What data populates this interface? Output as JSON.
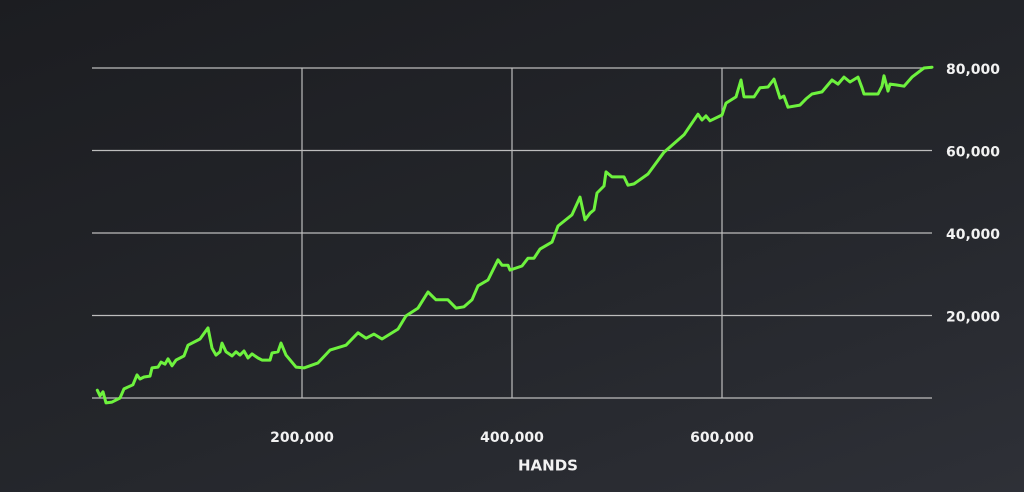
{
  "chart_data": {
    "type": "line",
    "xlabel": "HANDS",
    "color": "#6ef23e",
    "grid": true,
    "xlim": [
      0,
      800000
    ],
    "ylim": [
      0,
      80000
    ],
    "xticks": [
      {
        "value": 200000,
        "label": "200,000"
      },
      {
        "value": 400000,
        "label": "400,000"
      },
      {
        "value": 600000,
        "label": "600,000"
      }
    ],
    "yticks": [
      {
        "value": 20000,
        "label": "20,000"
      },
      {
        "value": 40000,
        "label": "40,000"
      },
      {
        "value": 60000,
        "label": "60,000"
      },
      {
        "value": 80000,
        "label": "80,000"
      }
    ],
    "x": [
      5000,
      7600,
      10500,
      13300,
      19000,
      26700,
      30500,
      39000,
      42900,
      45700,
      49500,
      55200,
      57100,
      62900,
      65700,
      69500,
      72400,
      76200,
      80000,
      87600,
      91400,
      102900,
      110500,
      114300,
      118100,
      121900,
      123800,
      127600,
      133300,
      137100,
      141000,
      144800,
      148600,
      152400,
      158100,
      161900,
      169500,
      171400,
      177100,
      180000,
      184800,
      194300,
      201900,
      215200,
      226700,
      241900,
      253300,
      261000,
      268600,
      276200,
      291400,
      299000,
      310500,
      320000,
      327600,
      339000,
      346700,
      354300,
      361900,
      367600,
      377100,
      386700,
      390500,
      396200,
      398100,
      409500,
      415200,
      421000,
      426700,
      438100,
      443800,
      457100,
      464800,
      469500,
      474300,
      478100,
      481000,
      487600,
      489500,
      495200,
      506700,
      510500,
      516200,
      529500,
      544800,
      563800,
      577100,
      581000,
      584800,
      588600,
      600000,
      603800,
      613300,
      618100,
      621000,
      630500,
      636200,
      643800,
      649500,
      655200,
      659000,
      662900,
      674300,
      680000,
      685700,
      695200,
      704800,
      710500,
      716200,
      721900,
      729500,
      733300,
      735200,
      748600,
      752400,
      754300,
      758100,
      760000,
      765700,
      773300,
      781000,
      792400,
      800000
    ],
    "values": [
      1900,
      500,
      1500,
      -1200,
      -1000,
      0,
      2200,
      3200,
      5600,
      4600,
      5100,
      5300,
      7300,
      7500,
      8700,
      8200,
      9500,
      7800,
      9200,
      10200,
      12800,
      14300,
      17000,
      12100,
      10400,
      11200,
      13300,
      11200,
      10200,
      11200,
      10400,
      11400,
      9700,
      10700,
      9700,
      9200,
      9200,
      10900,
      11200,
      13300,
      10400,
      7500,
      7300,
      8500,
      11600,
      12800,
      15800,
      14500,
      15500,
      14300,
      16700,
      19900,
      21800,
      25700,
      23800,
      23800,
      21800,
      22100,
      23800,
      27200,
      28600,
      33500,
      32200,
      32200,
      31000,
      32000,
      33900,
      33900,
      36100,
      37800,
      41700,
      44400,
      48700,
      43200,
      44800,
      45600,
      49700,
      51400,
      54800,
      53600,
      53600,
      51600,
      51900,
      54300,
      59600,
      63800,
      68800,
      67400,
      68400,
      67200,
      68600,
      71500,
      73000,
      77100,
      73000,
      73000,
      75200,
      75400,
      77300,
      72700,
      73200,
      70500,
      71000,
      72500,
      73700,
      74200,
      77100,
      76100,
      77800,
      76600,
      77800,
      75200,
      73700,
      73700,
      75600,
      78100,
      74400,
      76100,
      75900,
      75600,
      77800,
      80000,
      80200
    ]
  }
}
